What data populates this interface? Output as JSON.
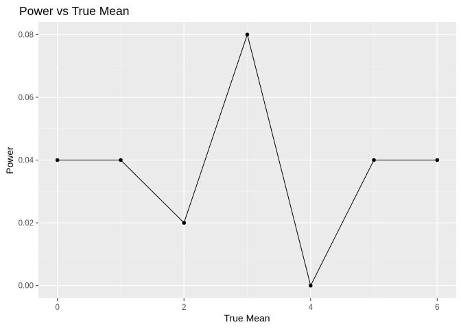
{
  "chart_data": {
    "type": "line",
    "title": "Power vs True Mean",
    "xlabel": "True Mean",
    "ylabel": "Power",
    "x": [
      0,
      1,
      2,
      3,
      4,
      5,
      6
    ],
    "series": [
      {
        "values": [
          0.04,
          0.04,
          0.02,
          0.08,
          0.0,
          0.04,
          0.04
        ]
      }
    ],
    "xlim": [
      -0.3,
      6.3
    ],
    "ylim": [
      -0.004,
      0.084
    ],
    "x_ticks": [
      "0",
      "2",
      "4",
      "6"
    ],
    "y_ticks": [
      "0.00",
      "0.02",
      "0.04",
      "0.06",
      "0.08"
    ],
    "grid": true,
    "legend": "none",
    "colors": {
      "panel_background": "#ebebeb",
      "grid_major": "#ffffff",
      "grid_minor": "#f5f5f5",
      "line": "#000000",
      "point": "#000000"
    }
  }
}
